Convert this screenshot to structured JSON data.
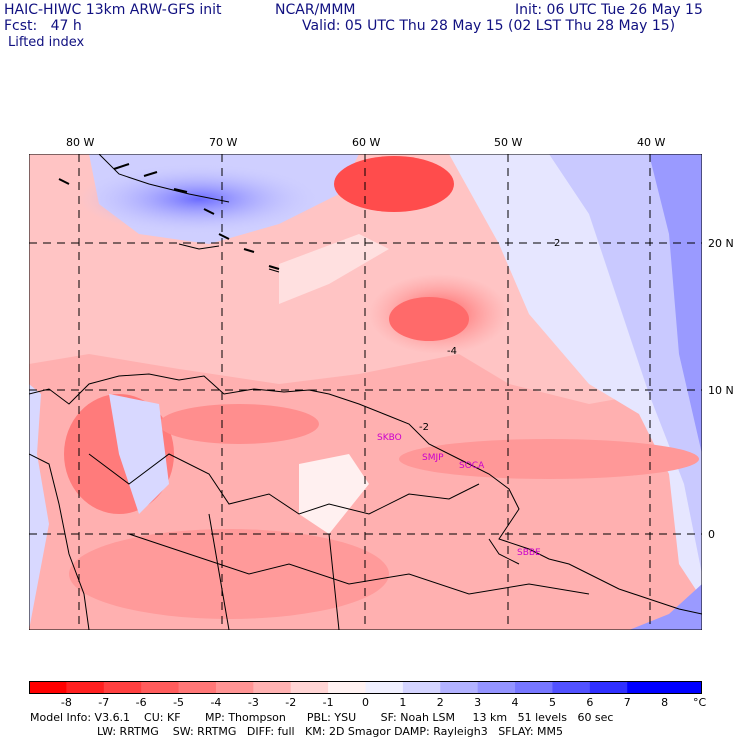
{
  "header": {
    "model_title": "HAIC-HIWC 13km ARW-GFS init",
    "org": "NCAR/MMM",
    "init": "Init: 06 UTC Tue 26 May 15",
    "fcst": "Fcst:   47 h",
    "valid": "Valid: 05 UTC Thu 28 May 15 (02 LST Thu 28 May 15)",
    "field": "Lifted index"
  },
  "map": {
    "lon_labels": [
      "80 W",
      "70 W",
      "60 W",
      "50 W",
      "40 W"
    ],
    "lat_labels": [
      "20 N",
      "10 N",
      "0"
    ],
    "stations": [
      "SKBO",
      "SMJP",
      "SOCA",
      "SBBE"
    ],
    "contour_labels": [
      "2",
      "2",
      "-4",
      "-2",
      "2"
    ]
  },
  "colorbar": {
    "labels": [
      "-8",
      "-7",
      "-6",
      "-5",
      "-4",
      "-3",
      "-2",
      "-1",
      "0",
      "1",
      "2",
      "3",
      "4",
      "5",
      "6",
      "7",
      "8"
    ],
    "unit": "°C",
    "colors": [
      "#ff0000",
      "#ff2020",
      "#ff4040",
      "#ff5c5c",
      "#ff7777",
      "#ff9494",
      "#ffb2b2",
      "#ffd4d4",
      "#fff2f2",
      "#f0f0ff",
      "#d4d4ff",
      "#b2b2ff",
      "#9494ff",
      "#7777ff",
      "#5252ff",
      "#3030ff",
      "#0000ff"
    ]
  },
  "footer": {
    "line1": "Model Info: V3.6.1    CU: KF       MP: Thompson      PBL: YSU       SF: Noah LSM     13 km   51 levels   60 sec",
    "line2": "LW: RRTMG    SW: RRTMG   DIFF: full   KM: 2D Smagor DAMP: Rayleigh3   SFLAY: MM5"
  }
}
